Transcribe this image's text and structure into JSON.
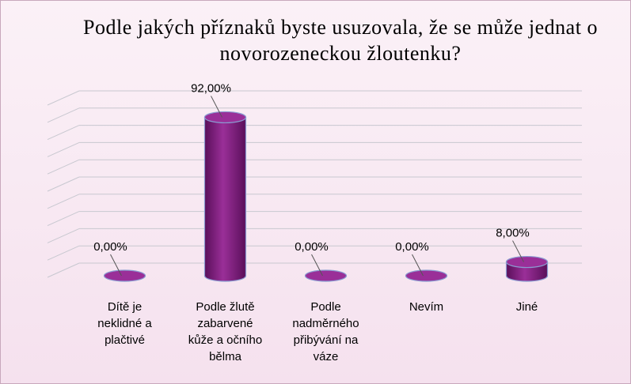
{
  "chart_data": {
    "type": "bar",
    "title": "Podle jakých příznaků byste usuzovala, že se může jednat o novorozeneckou žloutenku?",
    "categories": [
      "Dítě je\nneklidné a\nplačtivé",
      "Podle žlutě\nzabarvené\nkůže a očního\nbělma",
      "Podle\nnadměrného\npřibývání na\nváze",
      "Nevím",
      "Jiné"
    ],
    "values": [
      0,
      92,
      0,
      0,
      8
    ],
    "data_labels": [
      "0,00%",
      "92,00%",
      "0,00%",
      "0,00%",
      "8,00%"
    ],
    "ylim": [
      0,
      100
    ],
    "grid": true,
    "legend": "none",
    "bar_color": "#7b1c7a",
    "bar_top_color": "#9a2f98",
    "bar_edge_color": "#8a9ad0",
    "grid_color": "#c8c8d0"
  }
}
